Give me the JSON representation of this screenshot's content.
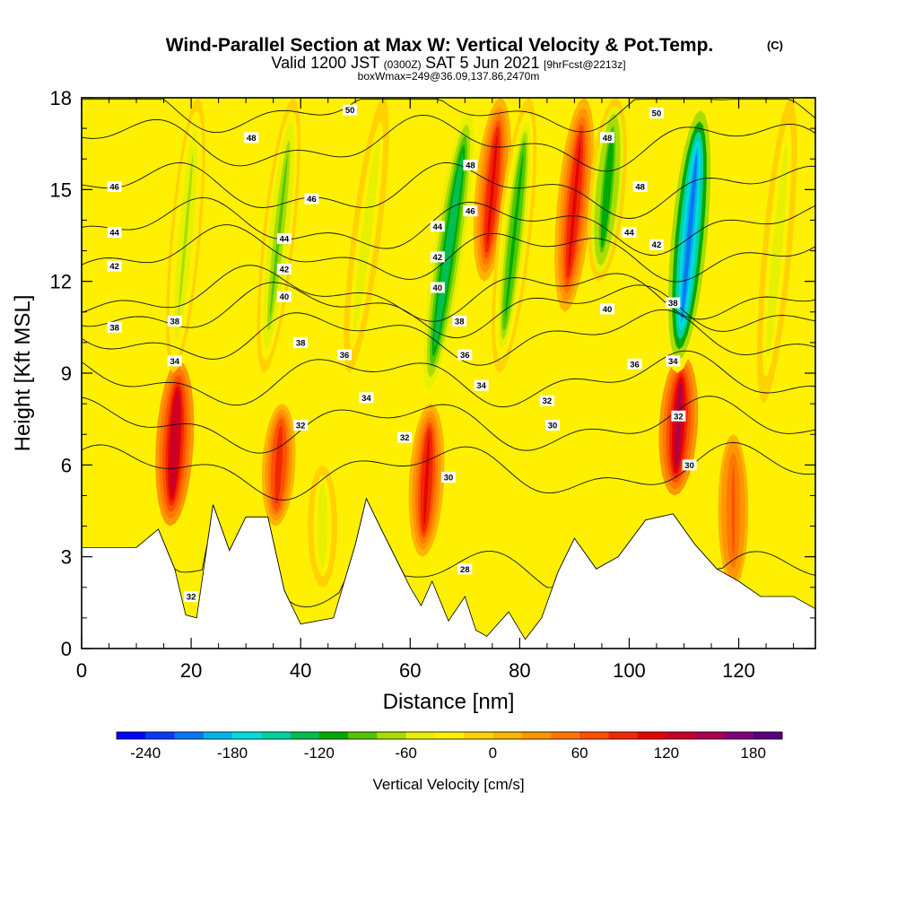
{
  "chart_data": {
    "type": "heatmap",
    "title": "Wind-Parallel Section at Max W: Vertical Velocity & Pot.Temp.",
    "title_mark": "(C)",
    "subtitle_parts": [
      "Valid 1200 JST",
      "(0300Z)",
      "SAT 5 Jun 2021",
      "[9hrFcst@2213z]"
    ],
    "subtitle2": "boxWmax=249@36.09,137.86,2470m",
    "xlabel": "Distance [nm]",
    "ylabel": "Height [Kft MSL]",
    "xlim": [
      0,
      134
    ],
    "ylim": [
      0,
      18
    ],
    "x_ticks": [
      0,
      20,
      40,
      60,
      80,
      100,
      120
    ],
    "y_ticks": [
      0,
      3,
      6,
      9,
      12,
      15,
      18
    ],
    "colorbar": {
      "label": "Vertical Velocity [cm/s]",
      "range": [
        -260,
        200
      ],
      "ticks": [
        -240,
        -180,
        -120,
        -60,
        0,
        60,
        120,
        180
      ],
      "colors": [
        "#0000ff",
        "#0a3cf5",
        "#0a78f0",
        "#00b4f0",
        "#00dcdc",
        "#00d2a0",
        "#00be50",
        "#00aa00",
        "#50c800",
        "#aadc00",
        "#e6f000",
        "#fff000",
        "#ffd200",
        "#ffb400",
        "#ff9600",
        "#ff7800",
        "#ff5000",
        "#f02800",
        "#e60000",
        "#c80028",
        "#aa0050",
        "#820078",
        "#5a0082"
      ]
    },
    "vertical_velocity_bands": [
      {
        "x": 17,
        "w": 150,
        "z0": 4,
        "z1": 9.4,
        "tilt": 0.3
      },
      {
        "x": 19,
        "w": -70,
        "z0": 9,
        "z1": 18,
        "tilt": 0.5
      },
      {
        "x": 36,
        "w": 100,
        "z0": 4,
        "z1": 8,
        "tilt": 0.3
      },
      {
        "x": 36,
        "w": -90,
        "z0": 9,
        "z1": 18,
        "tilt": 0.6
      },
      {
        "x": 44,
        "w": -60,
        "z0": 2,
        "z1": 6,
        "tilt": 0.0
      },
      {
        "x": 52,
        "w": -60,
        "z0": 9,
        "z1": 18,
        "tilt": 0.7
      },
      {
        "x": 63,
        "w": 120,
        "z0": 3,
        "z1": 8,
        "tilt": 0.3
      },
      {
        "x": 67,
        "w": -150,
        "z0": 8,
        "z1": 18,
        "tilt": 0.8
      },
      {
        "x": 75,
        "w": 110,
        "z0": 12,
        "z1": 18,
        "tilt": 0.5
      },
      {
        "x": 79,
        "w": -110,
        "z0": 9,
        "z1": 18,
        "tilt": 0.6
      },
      {
        "x": 90,
        "w": 120,
        "z0": 11,
        "z1": 18,
        "tilt": 0.5
      },
      {
        "x": 96,
        "w": -130,
        "z0": 12,
        "z1": 18,
        "tilt": 0.5
      },
      {
        "x": 109,
        "w": 160,
        "z0": 5,
        "z1": 9.6,
        "tilt": 0.3
      },
      {
        "x": 111,
        "w": -230,
        "z0": 9,
        "z1": 18,
        "tilt": 0.5
      },
      {
        "x": 119,
        "w": 70,
        "z0": 2,
        "z1": 7,
        "tilt": 0.0
      },
      {
        "x": 127,
        "w": -60,
        "z0": 8,
        "z1": 18,
        "tilt": 0.5
      }
    ],
    "terrain_height_kft": [
      [
        0,
        3.3
      ],
      [
        10,
        3.3
      ],
      [
        14,
        3.9
      ],
      [
        17,
        2.6
      ],
      [
        19,
        1.1
      ],
      [
        21,
        1.0
      ],
      [
        24,
        4.7
      ],
      [
        27,
        3.2
      ],
      [
        30,
        4.3
      ],
      [
        34,
        4.3
      ],
      [
        37,
        1.9
      ],
      [
        40,
        0.8
      ],
      [
        46,
        1.0
      ],
      [
        50,
        3.4
      ],
      [
        52,
        4.9
      ],
      [
        55,
        3.8
      ],
      [
        60,
        2.0
      ],
      [
        62,
        1.4
      ],
      [
        64,
        2.2
      ],
      [
        67,
        0.9
      ],
      [
        70,
        1.7
      ],
      [
        72,
        0.6
      ],
      [
        74,
        0.4
      ],
      [
        78,
        1.2
      ],
      [
        81,
        0.3
      ],
      [
        84,
        1.0
      ],
      [
        87,
        2.5
      ],
      [
        90,
        3.6
      ],
      [
        94,
        2.6
      ],
      [
        98,
        3.0
      ],
      [
        103,
        4.2
      ],
      [
        108,
        4.4
      ],
      [
        112,
        3.4
      ],
      [
        116,
        2.6
      ],
      [
        120,
        2.2
      ],
      [
        124,
        1.7
      ],
      [
        130,
        1.7
      ],
      [
        134,
        1.3
      ]
    ],
    "potential_temperature_contours": [
      {
        "level": "28",
        "z": 2.3
      },
      {
        "level": "30",
        "z": 5.8
      },
      {
        "level": "32",
        "z": 7.3
      },
      {
        "level": "34",
        "z": 8.8
      },
      {
        "level": "36",
        "z": 10.2
      },
      {
        "level": "38",
        "z": 11.1
      },
      {
        "level": "40",
        "z": 11.6
      },
      {
        "level": "42",
        "z": 12.9
      },
      {
        "level": "44",
        "z": 13.8
      },
      {
        "level": "46",
        "z": 15.0
      },
      {
        "level": "48",
        "z": 16.5
      },
      {
        "level": "50",
        "z": 17.7
      }
    ],
    "contour_labels": [
      {
        "text": "50",
        "x": 49,
        "y": 17.6
      },
      {
        "text": "50",
        "x": 105,
        "y": 17.5
      },
      {
        "text": "48",
        "x": 31,
        "y": 16.7
      },
      {
        "text": "48",
        "x": 71,
        "y": 15.8
      },
      {
        "text": "48",
        "x": 96,
        "y": 16.7
      },
      {
        "text": "48",
        "x": 102,
        "y": 15.1
      },
      {
        "text": "46",
        "x": 6,
        "y": 15.1
      },
      {
        "text": "46",
        "x": 42,
        "y": 14.7
      },
      {
        "text": "46",
        "x": 71,
        "y": 14.3
      },
      {
        "text": "44",
        "x": 6,
        "y": 13.6
      },
      {
        "text": "44",
        "x": 37,
        "y": 13.4
      },
      {
        "text": "44",
        "x": 65,
        "y": 13.8
      },
      {
        "text": "44",
        "x": 100,
        "y": 13.6
      },
      {
        "text": "42",
        "x": 6,
        "y": 12.5
      },
      {
        "text": "42",
        "x": 37,
        "y": 12.4
      },
      {
        "text": "42",
        "x": 65,
        "y": 12.8
      },
      {
        "text": "42",
        "x": 105,
        "y": 13.2
      },
      {
        "text": "40",
        "x": 37,
        "y": 11.5
      },
      {
        "text": "40",
        "x": 65,
        "y": 11.8
      },
      {
        "text": "40",
        "x": 96,
        "y": 11.1
      },
      {
        "text": "38",
        "x": 6,
        "y": 10.5
      },
      {
        "text": "38",
        "x": 17,
        "y": 10.7
      },
      {
        "text": "38",
        "x": 40,
        "y": 10.0
      },
      {
        "text": "38",
        "x": 69,
        "y": 10.7
      },
      {
        "text": "38",
        "x": 108,
        "y": 11.3
      },
      {
        "text": "36",
        "x": 48,
        "y": 9.6
      },
      {
        "text": "36",
        "x": 70,
        "y": 9.6
      },
      {
        "text": "36",
        "x": 101,
        "y": 9.3
      },
      {
        "text": "34",
        "x": 17,
        "y": 9.4
      },
      {
        "text": "34",
        "x": 52,
        "y": 8.2
      },
      {
        "text": "34",
        "x": 73,
        "y": 8.6
      },
      {
        "text": "34",
        "x": 108,
        "y": 9.4
      },
      {
        "text": "32",
        "x": 40,
        "y": 7.3
      },
      {
        "text": "32",
        "x": 59,
        "y": 6.9
      },
      {
        "text": "32",
        "x": 85,
        "y": 8.1
      },
      {
        "text": "32",
        "x": 109,
        "y": 7.6
      },
      {
        "text": "32",
        "x": 20,
        "y": 1.7
      },
      {
        "text": "30",
        "x": 67,
        "y": 5.6
      },
      {
        "text": "30",
        "x": 86,
        "y": 7.3
      },
      {
        "text": "30",
        "x": 111,
        "y": 6.0
      },
      {
        "text": "28",
        "x": 70,
        "y": 2.6
      }
    ]
  }
}
